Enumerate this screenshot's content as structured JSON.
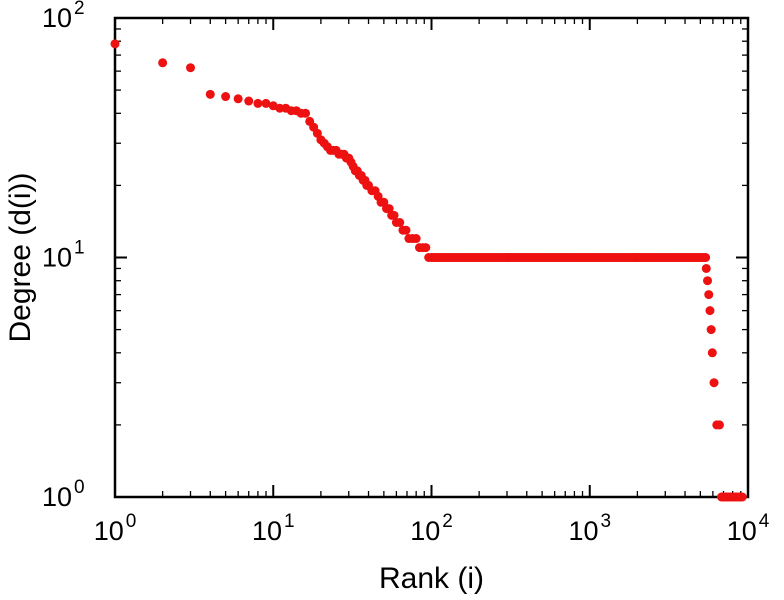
{
  "figure": {
    "background": "#ffffff",
    "axis_color": "#000000"
  },
  "chart_data": {
    "type": "scatter",
    "title": "",
    "xlabel": "Rank (i)",
    "ylabel": "Degree (d(i))",
    "x_scale": "log",
    "y_scale": "log",
    "xlim": [
      1,
      10000
    ],
    "ylim": [
      1,
      100
    ],
    "x_tick_exponents": [
      0,
      1,
      2,
      3,
      4
    ],
    "y_tick_exponents": [
      0,
      1,
      2
    ],
    "grid": false,
    "legend": "none",
    "marker": {
      "shape": "circle",
      "color": "#ee1111",
      "radius": 4.5
    },
    "points": [
      [
        1,
        78
      ],
      [
        2,
        65
      ],
      [
        3,
        62
      ],
      [
        4,
        48
      ],
      [
        5,
        47
      ],
      [
        6,
        46
      ],
      [
        7,
        45
      ],
      [
        8,
        44
      ],
      [
        9,
        44
      ],
      [
        10,
        43
      ],
      [
        11,
        42
      ],
      [
        12,
        42
      ],
      [
        13,
        41
      ],
      [
        14,
        41
      ],
      [
        15,
        40
      ],
      [
        16,
        40
      ],
      [
        17,
        37
      ],
      [
        18,
        35
      ],
      [
        19,
        33
      ],
      [
        20,
        31
      ],
      [
        21,
        30
      ],
      [
        22,
        29
      ],
      [
        23,
        28
      ],
      [
        24,
        28
      ],
      [
        25,
        28
      ],
      [
        26,
        27
      ],
      [
        27,
        27
      ],
      [
        28,
        27
      ],
      [
        29,
        26
      ],
      [
        30,
        26
      ],
      [
        31,
        25
      ],
      [
        32,
        24
      ],
      [
        33,
        23
      ],
      [
        34,
        23
      ],
      [
        35,
        22
      ],
      [
        36,
        22
      ],
      [
        37,
        21
      ],
      [
        38,
        21
      ],
      [
        39,
        20
      ],
      [
        40,
        20
      ],
      [
        42,
        19
      ],
      [
        44,
        19
      ],
      [
        46,
        18
      ],
      [
        48,
        17
      ],
      [
        50,
        17
      ],
      [
        52,
        16
      ],
      [
        54,
        16
      ],
      [
        56,
        15
      ],
      [
        58,
        15
      ],
      [
        60,
        14
      ],
      [
        63,
        14
      ],
      [
        66,
        13
      ],
      [
        69,
        13
      ],
      [
        72,
        12
      ],
      [
        76,
        12
      ],
      [
        80,
        12
      ],
      [
        84,
        11
      ],
      [
        88,
        11
      ],
      [
        92,
        11
      ],
      [
        96,
        10
      ],
      [
        5450,
        9
      ],
      [
        5550,
        8
      ],
      [
        5650,
        7
      ],
      [
        5750,
        6
      ],
      [
        5850,
        5
      ],
      [
        5950,
        4
      ],
      [
        6100,
        3
      ],
      [
        6350,
        2
      ],
      [
        6600,
        2
      ]
    ],
    "runs": [
      {
        "degree": 10,
        "rank_start": 100,
        "rank_end": 5400,
        "samples": 150
      },
      {
        "degree": 1,
        "rank_start": 6800,
        "rank_end": 9200,
        "samples": 14
      }
    ]
  }
}
